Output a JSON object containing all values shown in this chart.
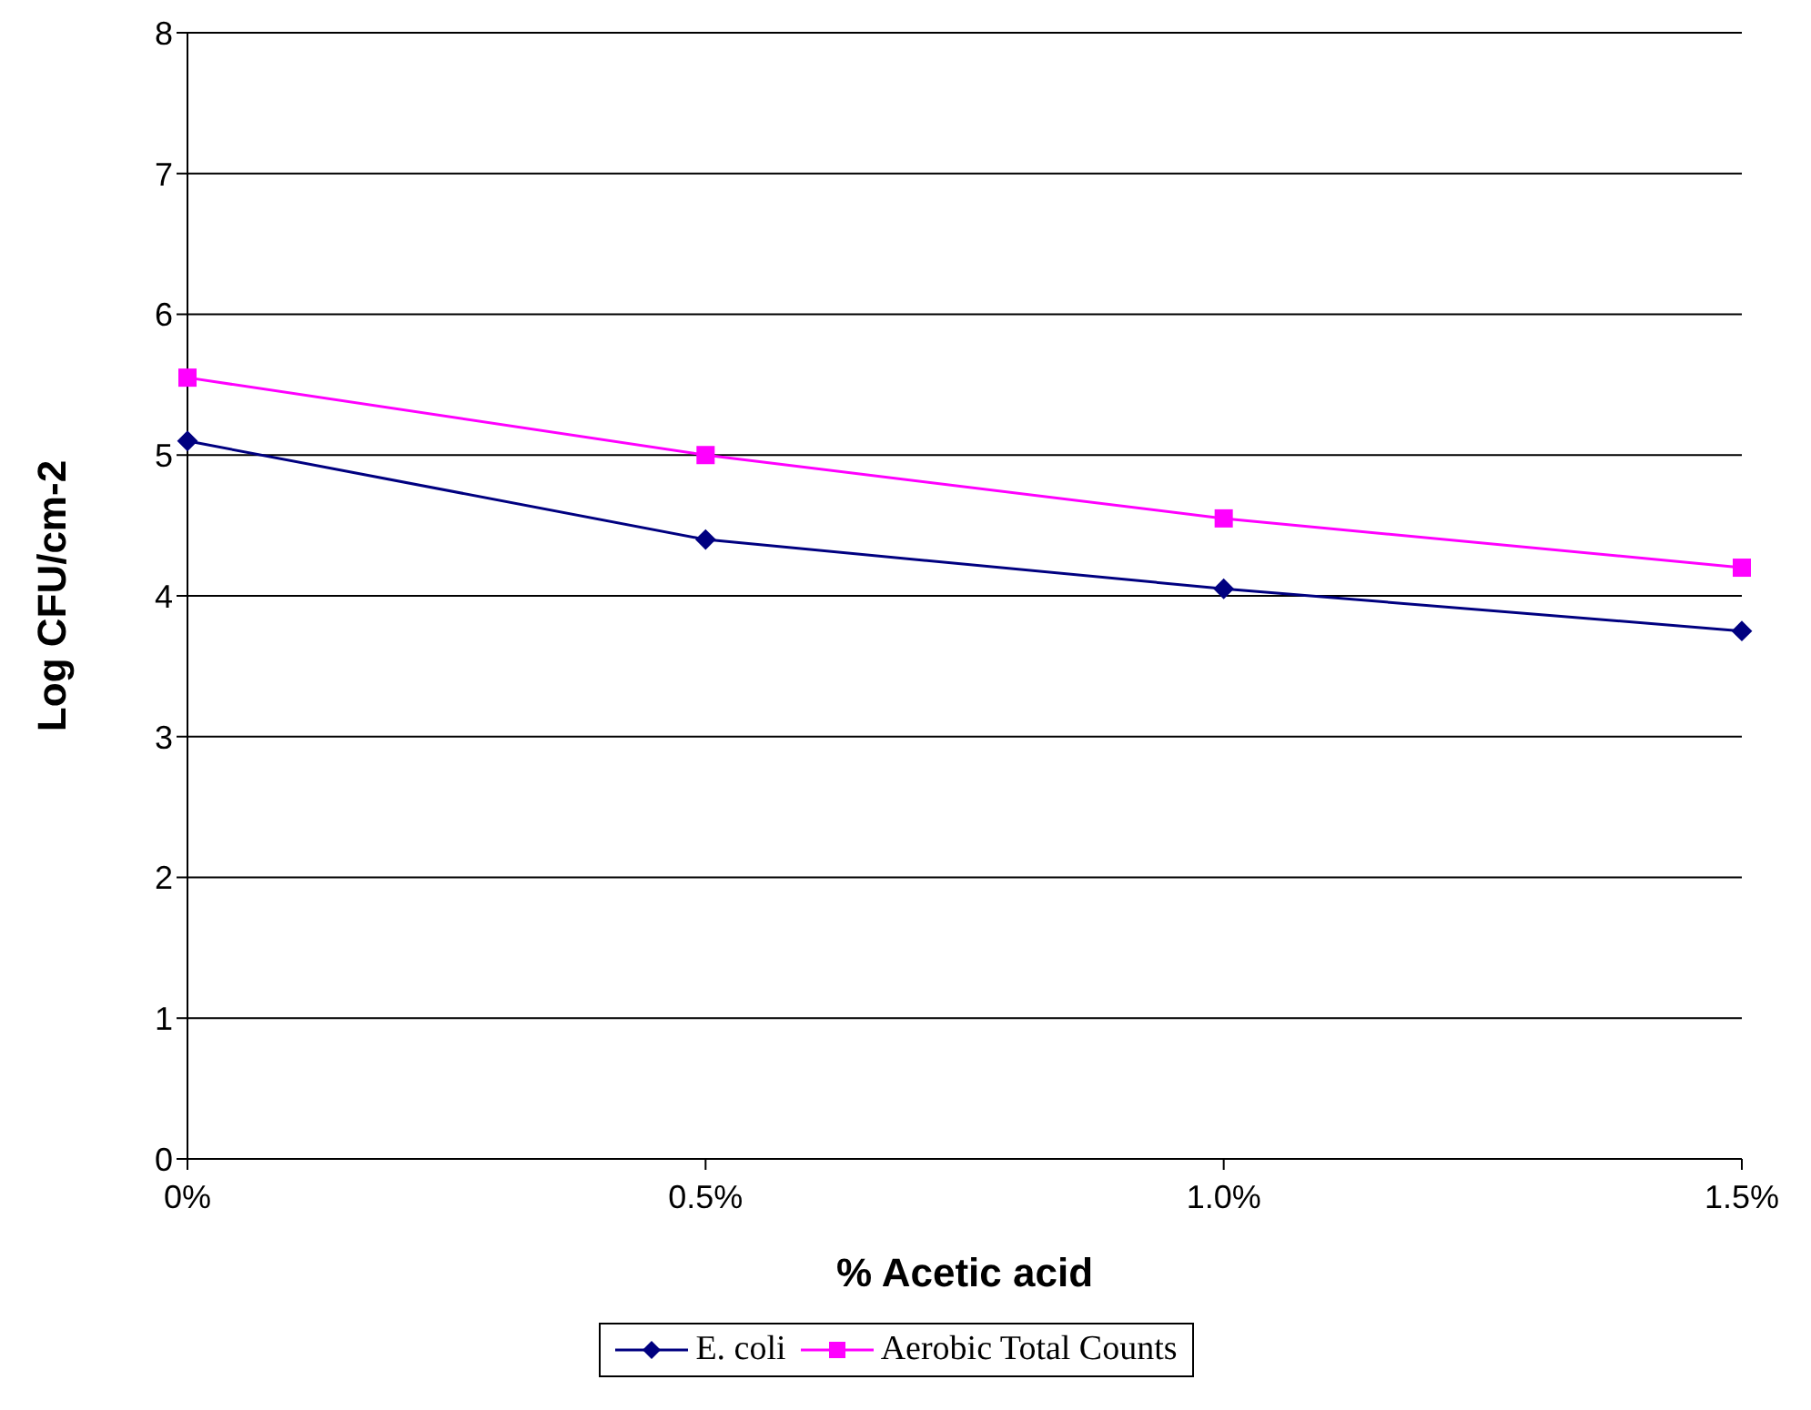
{
  "chart_data": {
    "type": "line",
    "xlabel": "% Acetic acid",
    "ylabel": "Log CFU/cm-2",
    "categories": [
      "0%",
      "0.5%",
      "1.0%",
      "1.5%"
    ],
    "series": [
      {
        "name": "E. coli",
        "color": "#000080",
        "marker": "diamond",
        "values": [
          5.1,
          4.4,
          4.05,
          3.75
        ]
      },
      {
        "name": "Aerobic Total Counts",
        "color": "#ff00ff",
        "marker": "square",
        "values": [
          5.55,
          5.0,
          4.55,
          4.2
        ]
      }
    ],
    "ylim": [
      0,
      8
    ],
    "yticks": [
      0,
      1,
      2,
      3,
      4,
      5,
      6,
      7,
      8
    ],
    "grid": "y",
    "legend": "bottom"
  }
}
